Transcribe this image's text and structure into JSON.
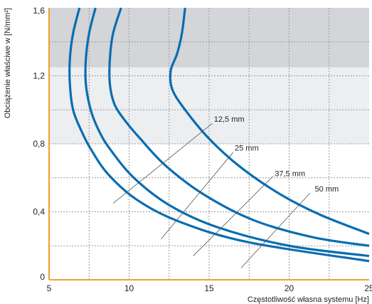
{
  "chart_data": {
    "type": "line",
    "xlabel": "Częstotliwość własna systemu [Hz]",
    "ylabel": "Obciążenie właściwe w [N/mm²]",
    "xlim": [
      5,
      25
    ],
    "ylim": [
      0,
      1.6
    ],
    "x_ticks": [
      5,
      10,
      15,
      20,
      25
    ],
    "x_tick_labels": [
      "5",
      "10",
      "15",
      "20",
      "25"
    ],
    "y_ticks": [
      0,
      0.4,
      0.8,
      1.2,
      1.6
    ],
    "y_tick_labels": [
      "0",
      "0,4",
      "0,8",
      "1,2",
      "1,6"
    ],
    "grid": true,
    "shaded_bands": [
      {
        "y_from": 1.25,
        "y_to": 1.6,
        "color": "#d3d5d8"
      },
      {
        "y_from": 0.8,
        "y_to": 1.25,
        "color": "#eceef0"
      }
    ],
    "colors": {
      "series": "#0a6db0",
      "axis": "#f0a030",
      "grid": "#9a9a9a"
    },
    "series": [
      {
        "name": "12,5 mm",
        "x": [
          6.9,
          6.5,
          6.3,
          6.3,
          6.5,
          7.0,
          7.6,
          8.7,
          10.5,
          13.2,
          17.5,
          25.0
        ],
        "y": [
          1.6,
          1.45,
          1.3,
          1.15,
          1.0,
          0.88,
          0.77,
          0.62,
          0.47,
          0.34,
          0.22,
          0.11
        ]
      },
      {
        "name": "25 mm",
        "x": [
          7.9,
          7.5,
          7.3,
          7.3,
          7.6,
          8.1,
          8.8,
          10.3,
          12.5,
          15.5,
          20.0,
          25.0
        ],
        "y": [
          1.6,
          1.45,
          1.3,
          1.15,
          1.0,
          0.88,
          0.77,
          0.6,
          0.44,
          0.31,
          0.2,
          0.14
        ]
      },
      {
        "name": "37,5 mm",
        "x": [
          9.5,
          9.0,
          8.8,
          8.8,
          9.1,
          9.8,
          10.7,
          12.3,
          14.7,
          17.8,
          21.5,
          25.0
        ],
        "y": [
          1.6,
          1.45,
          1.3,
          1.15,
          1.03,
          0.93,
          0.83,
          0.67,
          0.5,
          0.35,
          0.25,
          0.2
        ]
      },
      {
        "name": "50 mm",
        "x": [
          13.5,
          13.3,
          13.0,
          12.6,
          12.7,
          13.5,
          15.0,
          17.0,
          19.5,
          22.0,
          25.0
        ],
        "y": [
          1.6,
          1.45,
          1.33,
          1.23,
          1.12,
          1.0,
          0.83,
          0.66,
          0.5,
          0.38,
          0.27
        ]
      }
    ],
    "annotations": [
      {
        "text": "12,5 mm",
        "label_at": [
          15.3,
          0.93
        ],
        "leader_from": [
          15.2,
          0.92
        ],
        "leader_to": [
          9.0,
          0.45
        ]
      },
      {
        "text": "25 mm",
        "label_at": [
          16.6,
          0.76
        ],
        "leader_from": [
          16.5,
          0.75
        ],
        "leader_to": [
          12.0,
          0.24
        ]
      },
      {
        "text": "37,5 mm",
        "label_at": [
          19.1,
          0.61
        ],
        "leader_from": [
          19.0,
          0.61
        ],
        "leader_to": [
          14.0,
          0.14
        ]
      },
      {
        "text": "50 mm",
        "label_at": [
          21.6,
          0.52
        ],
        "leader_from": [
          21.3,
          0.51
        ],
        "leader_to": [
          17.0,
          0.07
        ]
      }
    ]
  }
}
